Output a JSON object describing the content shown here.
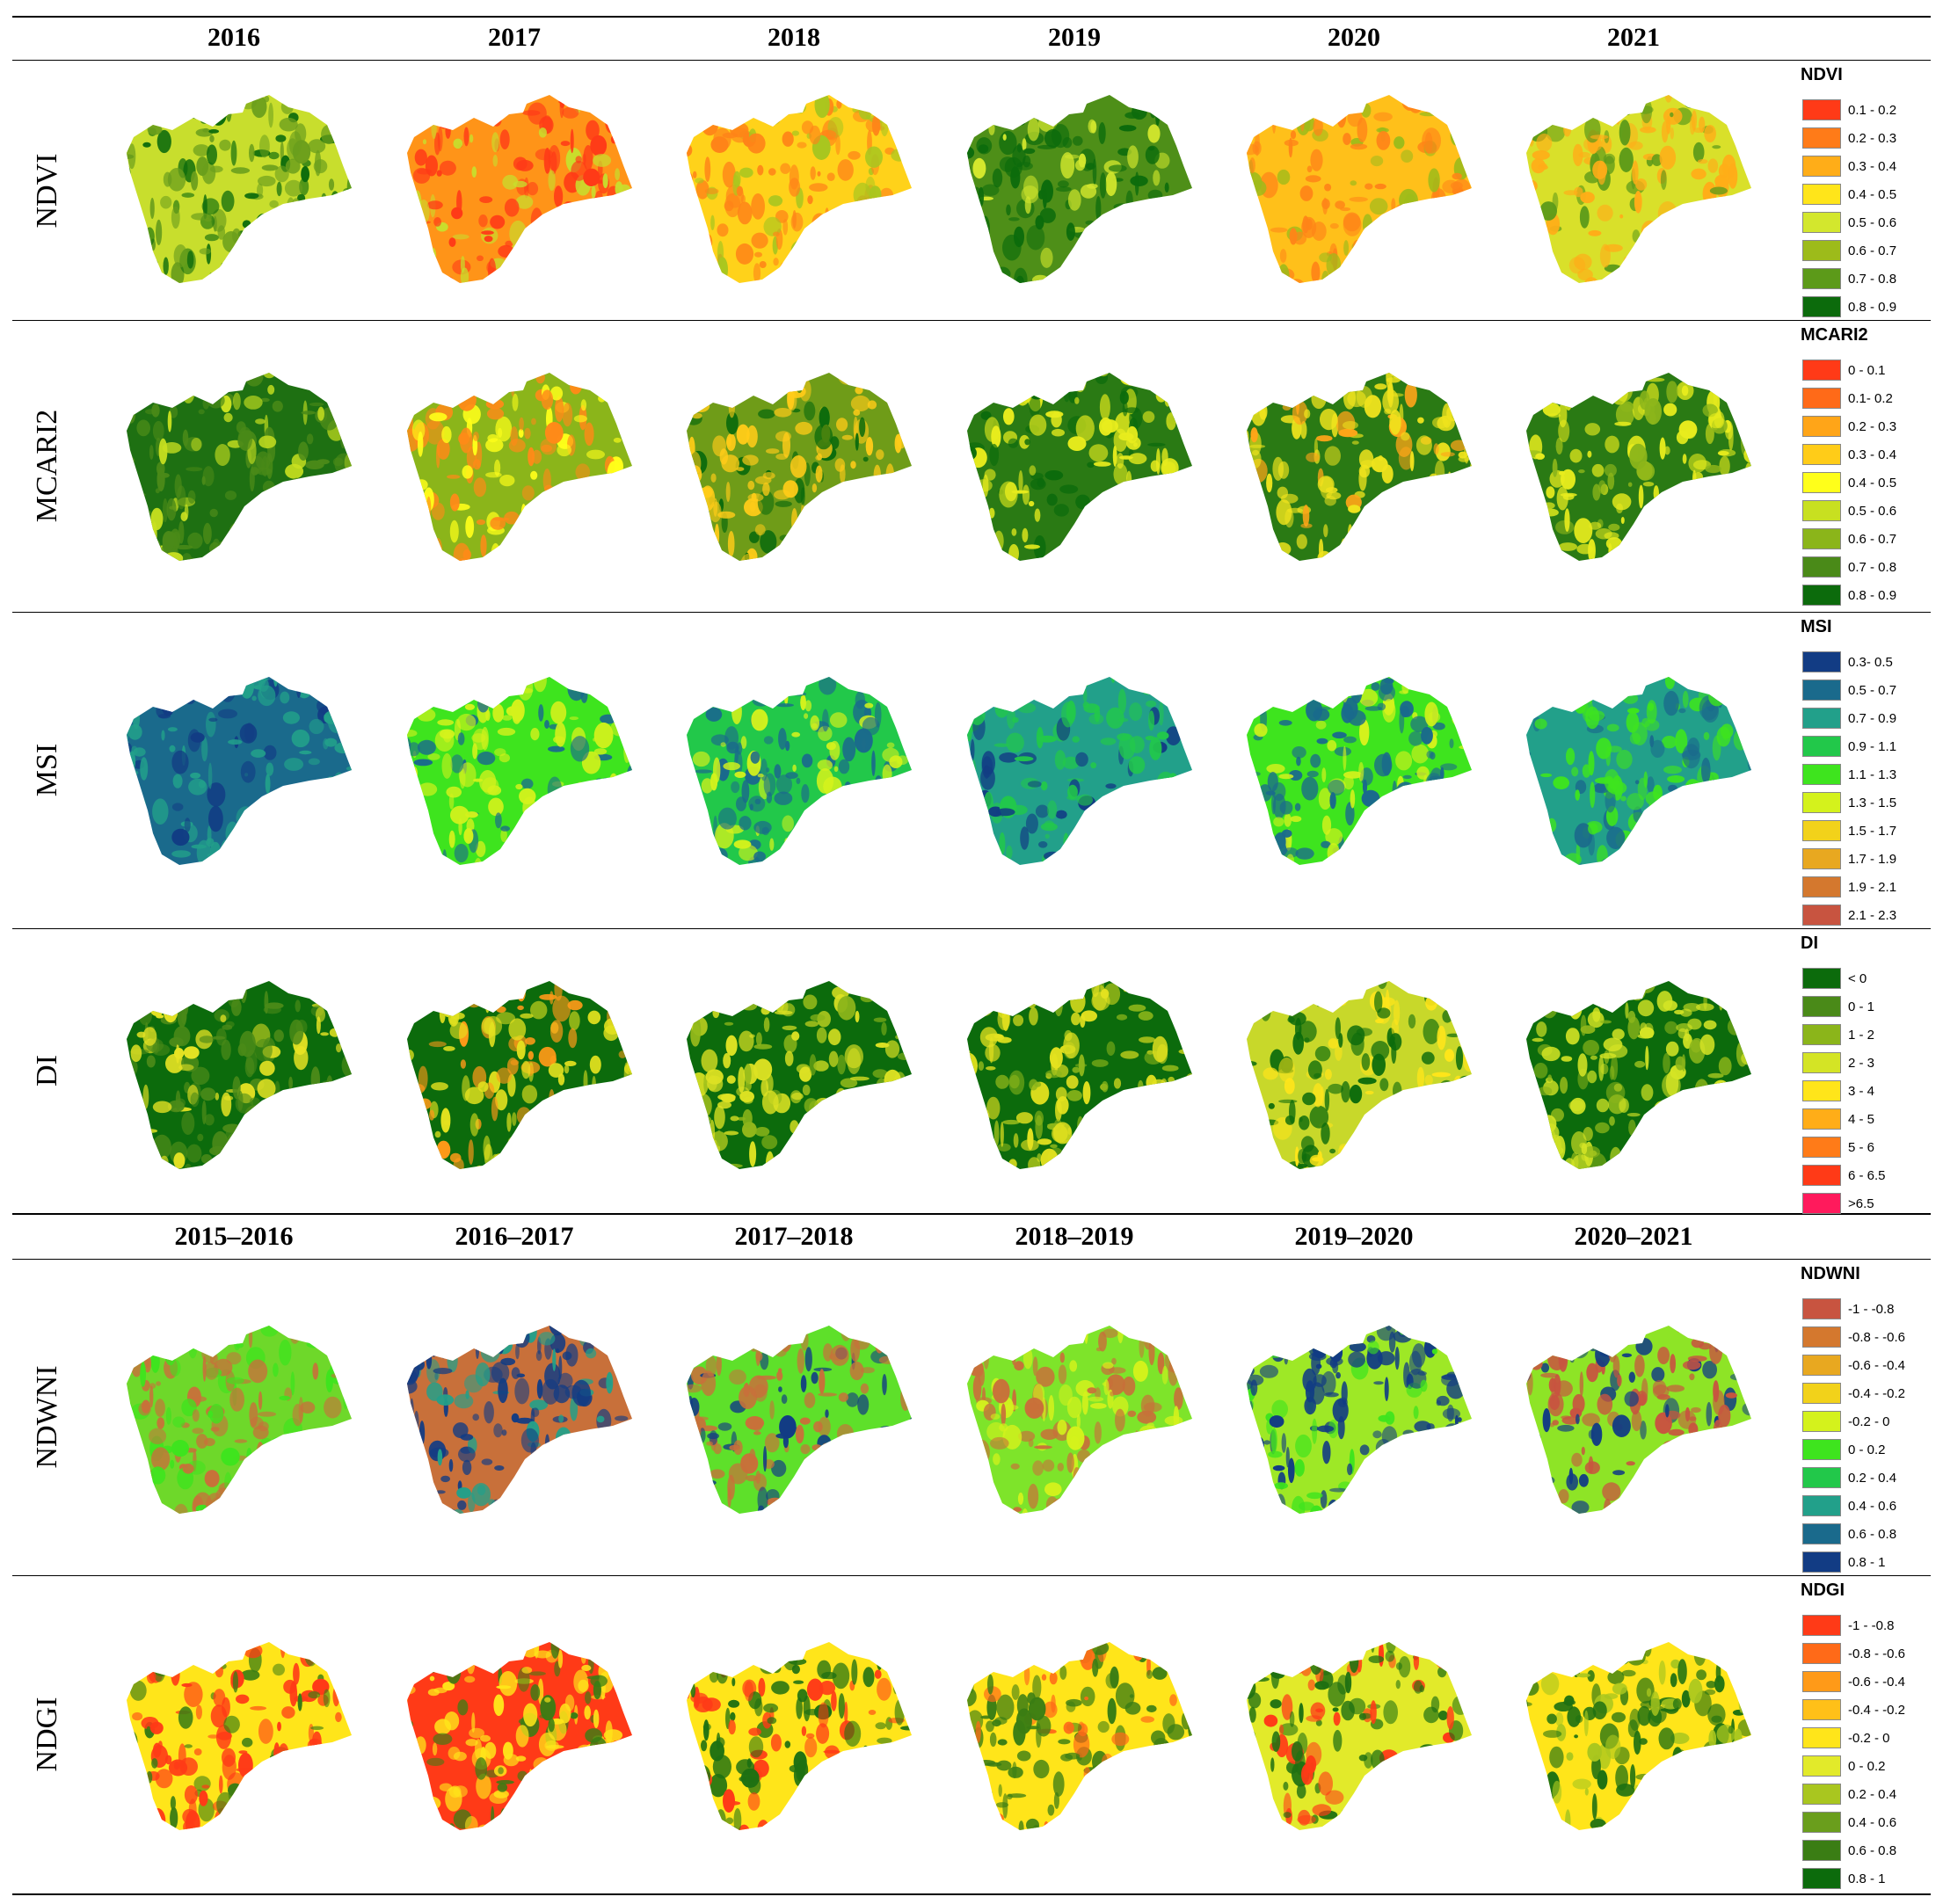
{
  "header_years": [
    "2016",
    "2017",
    "2018",
    "2019",
    "2020",
    "2021"
  ],
  "header_periods": [
    "2015–2016",
    "2016–2017",
    "2017–2018",
    "2018–2019",
    "2019–2020",
    "2020–2021"
  ],
  "rows": [
    {
      "label": "NDVI",
      "legend_title": "NDVI",
      "legend": [
        {
          "label": "0.1 - 0.2",
          "color": "#ff3a17"
        },
        {
          "label": "0.2 - 0.3",
          "color": "#ff7b18"
        },
        {
          "label": "0.3 - 0.4",
          "color": "#ffad18"
        },
        {
          "label": "0.4 - 0.5",
          "color": "#ffe51a"
        },
        {
          "label": "0.5 - 0.6",
          "color": "#d3e72d"
        },
        {
          "label": "0.6 - 0.7",
          "color": "#9dbb1a"
        },
        {
          "label": "0.7 - 0.8",
          "color": "#5c9a19"
        },
        {
          "label": "0.8 - 0.9",
          "color": "#0c6b0c"
        }
      ],
      "maps": [
        {
          "dominant": "#c8de2d",
          "accent": "#6a9e1c",
          "spot": "#0c6b0c"
        },
        {
          "dominant": "#ff9418",
          "accent": "#ff3a17",
          "spot": "#c8de2d"
        },
        {
          "dominant": "#ffd21a",
          "accent": "#ff8418",
          "spot": "#a9c61f"
        },
        {
          "dominant": "#4e8f18",
          "accent": "#0c6b0c",
          "spot": "#d3e72d"
        },
        {
          "dominant": "#ffc01a",
          "accent": "#ff8418",
          "spot": "#9dbb1a"
        },
        {
          "dominant": "#d9e02a",
          "accent": "#ffad18",
          "spot": "#5c9a19"
        }
      ]
    },
    {
      "label": "MCARI2",
      "legend_title": "MCARI2",
      "legend": [
        {
          "label": "0 - 0.1",
          "color": "#ff3a17"
        },
        {
          "label": "0.1- 0.2",
          "color": "#ff6a18"
        },
        {
          "label": "0.2 - 0.3",
          "color": "#ffa518"
        },
        {
          "label": "0.3 - 0.4",
          "color": "#ffcc18"
        },
        {
          "label": "0.4 - 0.5",
          "color": "#ffff1a"
        },
        {
          "label": "0.5 - 0.6",
          "color": "#c8e020"
        },
        {
          "label": "0.6 - 0.7",
          "color": "#8bb51a"
        },
        {
          "label": "0.7 - 0.8",
          "color": "#4a8a18"
        },
        {
          "label": "0.8 - 0.9",
          "color": "#0c6b0c"
        }
      ],
      "maps": [
        {
          "dominant": "#1e7012",
          "accent": "#4a8a18",
          "spot": "#c8e020"
        },
        {
          "dominant": "#8bb51a",
          "accent": "#ff8a18",
          "spot": "#ffff1a"
        },
        {
          "dominant": "#6f9c18",
          "accent": "#ffcc18",
          "spot": "#0c6b0c"
        },
        {
          "dominant": "#2a7a14",
          "accent": "#e8ec1d",
          "spot": "#0c6b0c"
        },
        {
          "dominant": "#2a7a14",
          "accent": "#f0e41d",
          "spot": "#ffa518"
        },
        {
          "dominant": "#2a7a14",
          "accent": "#e8ec1d",
          "spot": "#8bb51a"
        }
      ]
    },
    {
      "label": "MSI",
      "legend_title": "MSI",
      "legend": [
        {
          "label": "0.3- 0.5",
          "color": "#123c84"
        },
        {
          "label": "0.5 - 0.7",
          "color": "#1a6a8c"
        },
        {
          "label": "0.7 - 0.9",
          "color": "#22a08a"
        },
        {
          "label": "0.9 - 1.1",
          "color": "#22c84a"
        },
        {
          "label": "1.1 - 1.3",
          "color": "#3ee41e"
        },
        {
          "label": "1.3 - 1.5",
          "color": "#d4f21c"
        },
        {
          "label": "1.5 - 1.7",
          "color": "#f2d21a"
        },
        {
          "label": "1.7 - 1.9",
          "color": "#e8a820"
        },
        {
          "label": "1.9 - 2.1",
          "color": "#d4782e"
        },
        {
          "label": "2.1 - 2.3",
          "color": "#c85440"
        }
      ],
      "maps": [
        {
          "dominant": "#1a6a8c",
          "accent": "#22a08a",
          "spot": "#123c84"
        },
        {
          "dominant": "#3ee41e",
          "accent": "#d4f21c",
          "spot": "#1a6a8c"
        },
        {
          "dominant": "#22c84a",
          "accent": "#1a6a8c",
          "spot": "#d4f21c"
        },
        {
          "dominant": "#22a08a",
          "accent": "#22c84a",
          "spot": "#123c84"
        },
        {
          "dominant": "#3ee41e",
          "accent": "#1a6a8c",
          "spot": "#d4f21c"
        },
        {
          "dominant": "#22a08a",
          "accent": "#3ee41e",
          "spot": "#1a6a8c"
        }
      ]
    },
    {
      "label": "DI",
      "legend_title": "DI",
      "legend": [
        {
          "label": "< 0",
          "color": "#0c6b0c"
        },
        {
          "label": "0 - 1",
          "color": "#4a8a18"
        },
        {
          "label": "1 - 2",
          "color": "#8bb51a"
        },
        {
          "label": "2 - 3",
          "color": "#d4e425"
        },
        {
          "label": "3 - 4",
          "color": "#ffe51a"
        },
        {
          "label": "4 - 5",
          "color": "#ffad18"
        },
        {
          "label": "5 - 6",
          "color": "#ff7b18"
        },
        {
          "label": "6 - 6.5",
          "color": "#ff3a17"
        },
        {
          "label": ">6.5",
          "color": "#ff1a5c"
        }
      ],
      "maps": [
        {
          "dominant": "#0c6b0c",
          "accent": "#4a8a18",
          "spot": "#e8e424"
        },
        {
          "dominant": "#0c6b0c",
          "accent": "#e4e21f",
          "spot": "#ff9a18"
        },
        {
          "dominant": "#0c6b0c",
          "accent": "#dde223",
          "spot": "#8bb51a"
        },
        {
          "dominant": "#0c6b0c",
          "accent": "#e4e21f",
          "spot": "#8bb51a"
        },
        {
          "dominant": "#c8d82a",
          "accent": "#0c6b0c",
          "spot": "#ffe51a"
        },
        {
          "dominant": "#0c6b0c",
          "accent": "#d4e425",
          "spot": "#8bb51a"
        }
      ]
    },
    {
      "label": "NDWNI",
      "legend_title": "NDWNI",
      "legend": [
        {
          "label": "-1 - -0.8",
          "color": "#c85440"
        },
        {
          "label": "-0.8 - -0.6",
          "color": "#d4782e"
        },
        {
          "label": "-0.6 - -0.4",
          "color": "#e8a820"
        },
        {
          "label": "-0.4 - -0.2",
          "color": "#f2d21a"
        },
        {
          "label": "-0.2 - 0",
          "color": "#d4f21c"
        },
        {
          "label": "0 - 0.2",
          "color": "#3ee41e"
        },
        {
          "label": "0.2 - 0.4",
          "color": "#22c84a"
        },
        {
          "label": "0.4 - 0.6",
          "color": "#22a08a"
        },
        {
          "label": "0.6 - 0.8",
          "color": "#1a6a8c"
        },
        {
          "label": "0.8 - 1",
          "color": "#123c84"
        }
      ],
      "maps": [
        {
          "dominant": "#6ed82a",
          "accent": "#c8703a",
          "spot": "#3ee41e"
        },
        {
          "dominant": "#c8703a",
          "accent": "#123c84",
          "spot": "#22a08a"
        },
        {
          "dominant": "#5ee02a",
          "accent": "#c8703a",
          "spot": "#123c84"
        },
        {
          "dominant": "#7ee42a",
          "accent": "#c8703a",
          "spot": "#d4f21c"
        },
        {
          "dominant": "#9ee826",
          "accent": "#123c84",
          "spot": "#3ee41e"
        },
        {
          "dominant": "#8ee426",
          "accent": "#c85440",
          "spot": "#123c84"
        }
      ]
    },
    {
      "label": "NDGI",
      "legend_title": "NDGI",
      "legend": [
        {
          "label": "-1 - -0.8",
          "color": "#ff3a17"
        },
        {
          "label": "-0.8 - -0.6",
          "color": "#ff6a18"
        },
        {
          "label": "-0.6 - -0.4",
          "color": "#ff9a18"
        },
        {
          "label": "-0.4 - -0.2",
          "color": "#ffc018"
        },
        {
          "label": "-0.2 - 0",
          "color": "#ffe51a"
        },
        {
          "label": "0 - 0.2",
          "color": "#e2ea2a"
        },
        {
          "label": "0.2 - 0.4",
          "color": "#a9c61f"
        },
        {
          "label": "0.4 - 0.6",
          "color": "#6a9e1c"
        },
        {
          "label": "0.6 - 0.8",
          "color": "#3a7d14"
        },
        {
          "label": "0.8 - 1",
          "color": "#0c6b0c"
        }
      ],
      "maps": [
        {
          "dominant": "#ffe51a",
          "accent": "#ff3a17",
          "spot": "#3a7d14"
        },
        {
          "dominant": "#ff3a17",
          "accent": "#ffe51a",
          "spot": "#3a7d14"
        },
        {
          "dominant": "#ffe51a",
          "accent": "#1e7012",
          "spot": "#ff3a17"
        },
        {
          "dominant": "#ffe51a",
          "accent": "#3a7d14",
          "spot": "#ff6a18"
        },
        {
          "dominant": "#e2ea2a",
          "accent": "#1e7012",
          "spot": "#ff3a17"
        },
        {
          "dominant": "#ffe51a",
          "accent": "#1e7012",
          "spot": "#a9c61f"
        }
      ]
    }
  ]
}
